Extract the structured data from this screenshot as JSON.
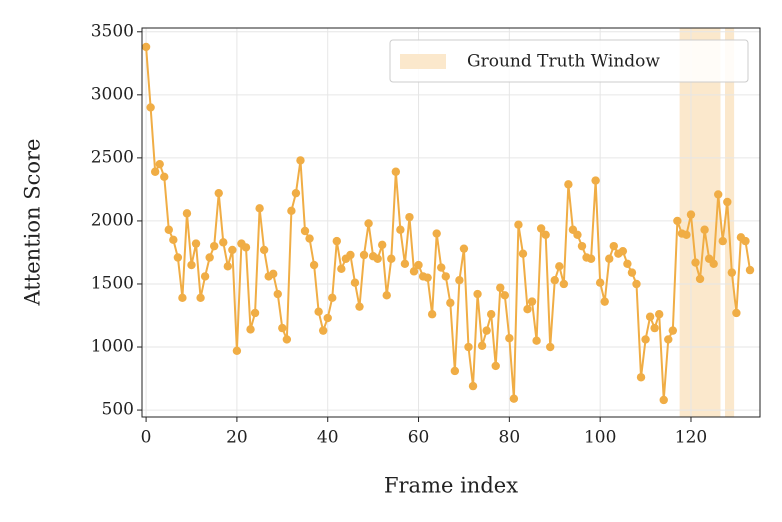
{
  "chart_data": {
    "type": "line",
    "xlabel": "Frame index",
    "ylabel": "Attention Score",
    "x": [
      0,
      1,
      2,
      3,
      4,
      5,
      6,
      7,
      8,
      9,
      10,
      11,
      12,
      13,
      14,
      15,
      16,
      17,
      18,
      19,
      20,
      21,
      22,
      23,
      24,
      25,
      26,
      27,
      28,
      29,
      30,
      31,
      32,
      33,
      34,
      35,
      36,
      37,
      38,
      39,
      40,
      41,
      42,
      43,
      44,
      45,
      46,
      47,
      48,
      49,
      50,
      51,
      52,
      53,
      54,
      55,
      56,
      57,
      58,
      59,
      60,
      61,
      62,
      63,
      64,
      65,
      66,
      67,
      68,
      69,
      70,
      71,
      72,
      73,
      74,
      75,
      76,
      77,
      78,
      79,
      80,
      81,
      82,
      83,
      84,
      85,
      86,
      87,
      88,
      89,
      90,
      91,
      92,
      93,
      94,
      95,
      96,
      97,
      98,
      99,
      100,
      101,
      102,
      103,
      104,
      105,
      106,
      107,
      108,
      109,
      110,
      111,
      112,
      113,
      114,
      115,
      116,
      117,
      118,
      119,
      120,
      121,
      122,
      123,
      124,
      125,
      126,
      127,
      128,
      129,
      130,
      131,
      132,
      133
    ],
    "series": [
      {
        "color": "#f0ad45",
        "values": [
          3380,
          2900,
          2390,
          2450,
          2350,
          1930,
          1850,
          1710,
          1390,
          2060,
          1650,
          1820,
          1390,
          1560,
          1710,
          1800,
          2220,
          1830,
          1640,
          1770,
          970,
          1820,
          1790,
          1140,
          1270,
          2100,
          1770,
          1560,
          1580,
          1420,
          1150,
          1060,
          2080,
          2220,
          2480,
          1920,
          1860,
          1650,
          1280,
          1130,
          1230,
          1390,
          1840,
          1620,
          1700,
          1730,
          1510,
          1320,
          1730,
          1980,
          1720,
          1700,
          1810,
          1410,
          1700,
          2390,
          1930,
          1660,
          2030,
          1600,
          1650,
          1560,
          1550,
          1260,
          1900,
          1630,
          1560,
          1350,
          810,
          1530,
          1780,
          1000,
          690,
          1420,
          1010,
          1130,
          1260,
          850,
          1470,
          1410,
          1070,
          590,
          1970,
          1740,
          1300,
          1360,
          1050,
          1940,
          1890,
          1000,
          1530,
          1640,
          1500,
          2290,
          1930,
          1890,
          1800,
          1710,
          1700,
          2320,
          1510,
          1360,
          1700,
          1800,
          1740,
          1760,
          1660,
          1590,
          1500,
          760,
          1060,
          1240,
          1150,
          1260,
          580,
          1060,
          1130,
          2000,
          1900,
          1890,
          2050,
          1670,
          1540,
          1930,
          1700,
          1660,
          2210,
          1840,
          2150,
          1590,
          1270,
          1870,
          1840,
          1610
        ]
      }
    ],
    "shaded_regions": {
      "name": "Ground Truth Window",
      "color": "#fbe8cc",
      "spans": [
        [
          117.5,
          126.5
        ],
        [
          127.5,
          129.5
        ]
      ]
    },
    "xlim": [
      -0.9,
      135.2
    ],
    "ylim": [
      445,
      3530
    ],
    "xticks": [
      0,
      20,
      40,
      60,
      80,
      100,
      120
    ],
    "yticks": [
      500,
      1000,
      1500,
      2000,
      2500,
      3000,
      3500
    ],
    "grid": true,
    "legend": "upper right"
  }
}
